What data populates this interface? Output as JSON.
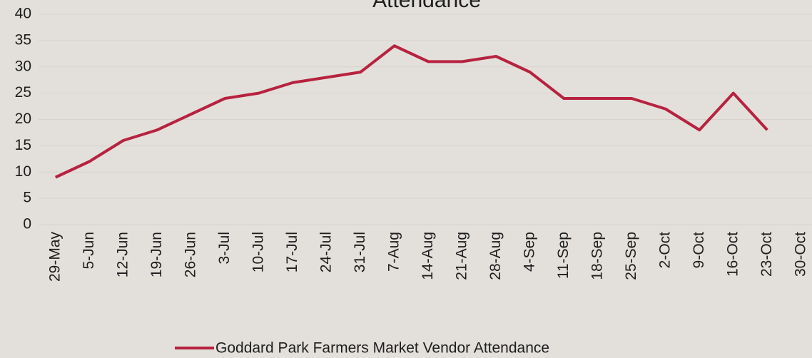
{
  "chart_data": {
    "type": "line",
    "title": "Attendance",
    "categories": [
      "29-May",
      "5-Jun",
      "12-Jun",
      "19-Jun",
      "26-Jun",
      "3-Jul",
      "10-Jul",
      "17-Jul",
      "24-Jul",
      "31-Jul",
      "7-Aug",
      "14-Aug",
      "21-Aug",
      "28-Aug",
      "4-Sep",
      "11-Sep",
      "18-Sep",
      "25-Sep",
      "2-Oct",
      "9-Oct",
      "16-Oct",
      "23-Oct",
      "30-Oct"
    ],
    "series": [
      {
        "name": "Goddard Park Farmers Market Vendor Attendance",
        "color": "#b7223f",
        "values": [
          9,
          12,
          16,
          18,
          21,
          24,
          25,
          27,
          28,
          29,
          34,
          31,
          31,
          32,
          29,
          24,
          24,
          24,
          22,
          18,
          25,
          18,
          null
        ]
      }
    ],
    "ylim": [
      0,
      40
    ],
    "yticks": [
      0,
      5,
      10,
      15,
      20,
      25,
      30,
      35,
      40
    ],
    "grid": true,
    "legend": "bottom"
  }
}
